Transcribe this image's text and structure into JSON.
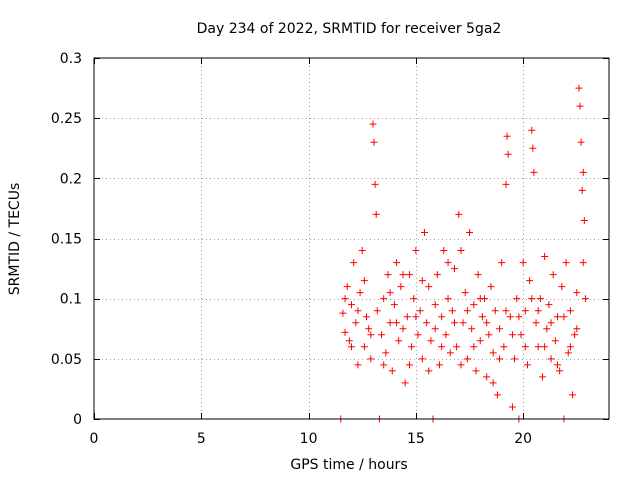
{
  "chart_data": {
    "type": "scatter",
    "title": "Day 234 of 2022, SRMTID for receiver 5ga2",
    "xlabel": "GPS time / hours",
    "ylabel": "SRMTID / TECUs",
    "xlim": [
      0,
      24
    ],
    "ylim": [
      0,
      0.3
    ],
    "x_ticks": [
      0,
      5,
      10,
      15,
      20
    ],
    "x_tick_labels": [
      "0",
      "5",
      "10",
      "15",
      "20"
    ],
    "y_ticks": [
      0,
      0.05,
      0.1,
      0.15,
      0.2,
      0.25,
      0.3
    ],
    "y_tick_labels": [
      "0",
      "0.05",
      "0.1",
      "0.15",
      "0.2",
      "0.25",
      "0.3"
    ],
    "grid": true,
    "marker": "+",
    "color": "#ff0000",
    "series": [
      {
        "name": "SRMTID",
        "points": [
          [
            11.5,
            0
          ],
          [
            11.6,
            0.088
          ],
          [
            11.7,
            0.072
          ],
          [
            11.8,
            0.11
          ],
          [
            11.9,
            0.065
          ],
          [
            12.0,
            0.095
          ],
          [
            12.1,
            0.13
          ],
          [
            12.2,
            0.08
          ],
          [
            12.3,
            0.045
          ],
          [
            12.4,
            0.105
          ],
          [
            12.5,
            0.14
          ],
          [
            12.6,
            0.06
          ],
          [
            12.7,
            0.085
          ],
          [
            12.8,
            0.075
          ],
          [
            12.9,
            0.05
          ],
          [
            13.0,
            0.245
          ],
          [
            13.05,
            0.23
          ],
          [
            13.1,
            0.195
          ],
          [
            13.15,
            0.17
          ],
          [
            13.2,
            0.09
          ],
          [
            13.3,
            0.0
          ],
          [
            13.4,
            0.07
          ],
          [
            13.5,
            0.1
          ],
          [
            13.6,
            0.055
          ],
          [
            13.7,
            0.12
          ],
          [
            13.8,
            0.08
          ],
          [
            13.9,
            0.04
          ],
          [
            14.0,
            0.095
          ],
          [
            14.1,
            0.13
          ],
          [
            14.2,
            0.065
          ],
          [
            14.3,
            0.11
          ],
          [
            14.4,
            0.075
          ],
          [
            14.5,
            0.03
          ],
          [
            14.6,
            0.085
          ],
          [
            14.7,
            0.12
          ],
          [
            14.8,
            0.06
          ],
          [
            14.9,
            0.1
          ],
          [
            15.0,
            0.14
          ],
          [
            15.1,
            0.07
          ],
          [
            15.2,
            0.09
          ],
          [
            15.3,
            0.05
          ],
          [
            15.4,
            0.155
          ],
          [
            15.5,
            0.08
          ],
          [
            15.6,
            0.11
          ],
          [
            15.7,
            0.065
          ],
          [
            15.8,
            0.0
          ],
          [
            15.9,
            0.095
          ],
          [
            16.0,
            0.12
          ],
          [
            16.1,
            0.045
          ],
          [
            16.2,
            0.085
          ],
          [
            16.3,
            0.14
          ],
          [
            16.4,
            0.07
          ],
          [
            16.5,
            0.1
          ],
          [
            16.6,
            0.055
          ],
          [
            16.7,
            0.09
          ],
          [
            16.8,
            0.125
          ],
          [
            16.9,
            0.06
          ],
          [
            17.0,
            0.17
          ],
          [
            17.1,
            0.14
          ],
          [
            17.2,
            0.08
          ],
          [
            17.3,
            0.105
          ],
          [
            17.4,
            0.05
          ],
          [
            17.5,
            0.155
          ],
          [
            17.6,
            0.075
          ],
          [
            17.7,
            0.095
          ],
          [
            17.8,
            0.04
          ],
          [
            17.9,
            0.12
          ],
          [
            18.0,
            0.065
          ],
          [
            18.1,
            0.085
          ],
          [
            18.2,
            0.1
          ],
          [
            18.3,
            0.035
          ],
          [
            18.4,
            0.07
          ],
          [
            18.5,
            0.11
          ],
          [
            18.6,
            0.055
          ],
          [
            18.7,
            0.09
          ],
          [
            18.8,
            0.02
          ],
          [
            18.9,
            0.075
          ],
          [
            19.0,
            0.13
          ],
          [
            19.1,
            0.06
          ],
          [
            19.2,
            0.195
          ],
          [
            19.25,
            0.235
          ],
          [
            19.3,
            0.22
          ],
          [
            19.4,
            0.085
          ],
          [
            19.5,
            0.01
          ],
          [
            19.6,
            0.05
          ],
          [
            19.7,
            0.1
          ],
          [
            19.8,
            0.0
          ],
          [
            19.9,
            0.07
          ],
          [
            20.0,
            0.13
          ],
          [
            20.1,
            0.09
          ],
          [
            20.2,
            0.045
          ],
          [
            20.3,
            0.115
          ],
          [
            20.4,
            0.24
          ],
          [
            20.45,
            0.225
          ],
          [
            20.5,
            0.205
          ],
          [
            20.6,
            0.08
          ],
          [
            20.7,
            0.06
          ],
          [
            20.8,
            0.1
          ],
          [
            20.9,
            0.035
          ],
          [
            21.0,
            0.135
          ],
          [
            21.1,
            0.075
          ],
          [
            21.2,
            0.095
          ],
          [
            21.3,
            0.05
          ],
          [
            21.4,
            0.12
          ],
          [
            21.5,
            0.065
          ],
          [
            21.6,
            0.085
          ],
          [
            21.7,
            0.04
          ],
          [
            21.8,
            0.11
          ],
          [
            21.9,
            0.0
          ],
          [
            22.0,
            0.13
          ],
          [
            22.1,
            0.055
          ],
          [
            22.2,
            0.09
          ],
          [
            22.3,
            0.02
          ],
          [
            22.4,
            0.07
          ],
          [
            22.5,
            0.105
          ],
          [
            22.6,
            0.275
          ],
          [
            22.65,
            0.26
          ],
          [
            22.7,
            0.23
          ],
          [
            22.75,
            0.19
          ],
          [
            22.8,
            0.205
          ],
          [
            22.85,
            0.165
          ],
          [
            22.9,
            0.1
          ],
          [
            11.7,
            0.1
          ],
          [
            12.0,
            0.06
          ],
          [
            12.3,
            0.09
          ],
          [
            12.6,
            0.115
          ],
          [
            12.9,
            0.07
          ],
          [
            13.5,
            0.045
          ],
          [
            13.8,
            0.105
          ],
          [
            14.1,
            0.08
          ],
          [
            14.4,
            0.12
          ],
          [
            14.7,
            0.045
          ],
          [
            15.0,
            0.085
          ],
          [
            15.3,
            0.115
          ],
          [
            15.6,
            0.04
          ],
          [
            15.9,
            0.075
          ],
          [
            16.2,
            0.06
          ],
          [
            16.5,
            0.13
          ],
          [
            16.8,
            0.08
          ],
          [
            17.1,
            0.045
          ],
          [
            17.4,
            0.09
          ],
          [
            17.7,
            0.06
          ],
          [
            18.0,
            0.1
          ],
          [
            18.3,
            0.08
          ],
          [
            18.6,
            0.03
          ],
          [
            18.9,
            0.05
          ],
          [
            19.2,
            0.09
          ],
          [
            19.5,
            0.07
          ],
          [
            19.8,
            0.085
          ],
          [
            20.1,
            0.06
          ],
          [
            20.4,
            0.1
          ],
          [
            20.7,
            0.09
          ],
          [
            21.0,
            0.06
          ],
          [
            21.3,
            0.08
          ],
          [
            21.6,
            0.045
          ],
          [
            21.9,
            0.085
          ],
          [
            22.2,
            0.06
          ],
          [
            22.5,
            0.075
          ],
          [
            22.8,
            0.13
          ]
        ]
      }
    ]
  }
}
